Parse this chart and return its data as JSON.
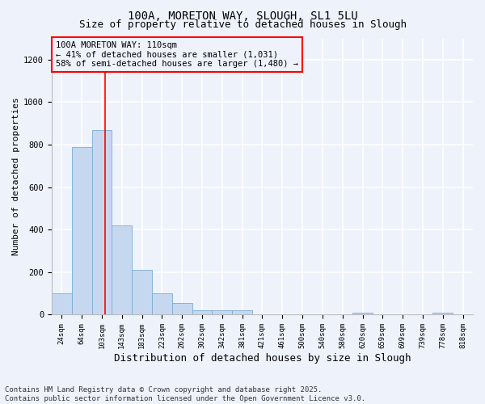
{
  "title": "100A, MORETON WAY, SLOUGH, SL1 5LU",
  "subtitle": "Size of property relative to detached houses in Slough",
  "xlabel": "Distribution of detached houses by size in Slough",
  "ylabel": "Number of detached properties",
  "categories": [
    "24sqm",
    "64sqm",
    "103sqm",
    "143sqm",
    "183sqm",
    "223sqm",
    "262sqm",
    "302sqm",
    "342sqm",
    "381sqm",
    "421sqm",
    "461sqm",
    "500sqm",
    "540sqm",
    "580sqm",
    "620sqm",
    "659sqm",
    "699sqm",
    "739sqm",
    "778sqm",
    "818sqm"
  ],
  "bar_values": [
    100,
    790,
    870,
    420,
    210,
    100,
    55,
    20,
    20,
    20,
    0,
    0,
    0,
    0,
    0,
    10,
    0,
    0,
    0,
    10,
    0
  ],
  "bar_color": "#c5d8f0",
  "bar_edge_color": "#7aadd4",
  "red_line_x": 2.18,
  "annotation_box_text": "100A MORETON WAY: 110sqm\n← 41% of detached houses are smaller (1,031)\n58% of semi-detached houses are larger (1,480) →",
  "ylim": [
    0,
    1300
  ],
  "yticks": [
    0,
    200,
    400,
    600,
    800,
    1000,
    1200
  ],
  "background_color": "#eef2fb",
  "grid_color": "#ffffff",
  "footer_line1": "Contains HM Land Registry data © Crown copyright and database right 2025.",
  "footer_line2": "Contains public sector information licensed under the Open Government Licence v3.0.",
  "title_fontsize": 10,
  "subtitle_fontsize": 9,
  "axis_label_fontsize": 8,
  "tick_fontsize": 6.5,
  "annotation_fontsize": 7.5,
  "footer_fontsize": 6.5
}
